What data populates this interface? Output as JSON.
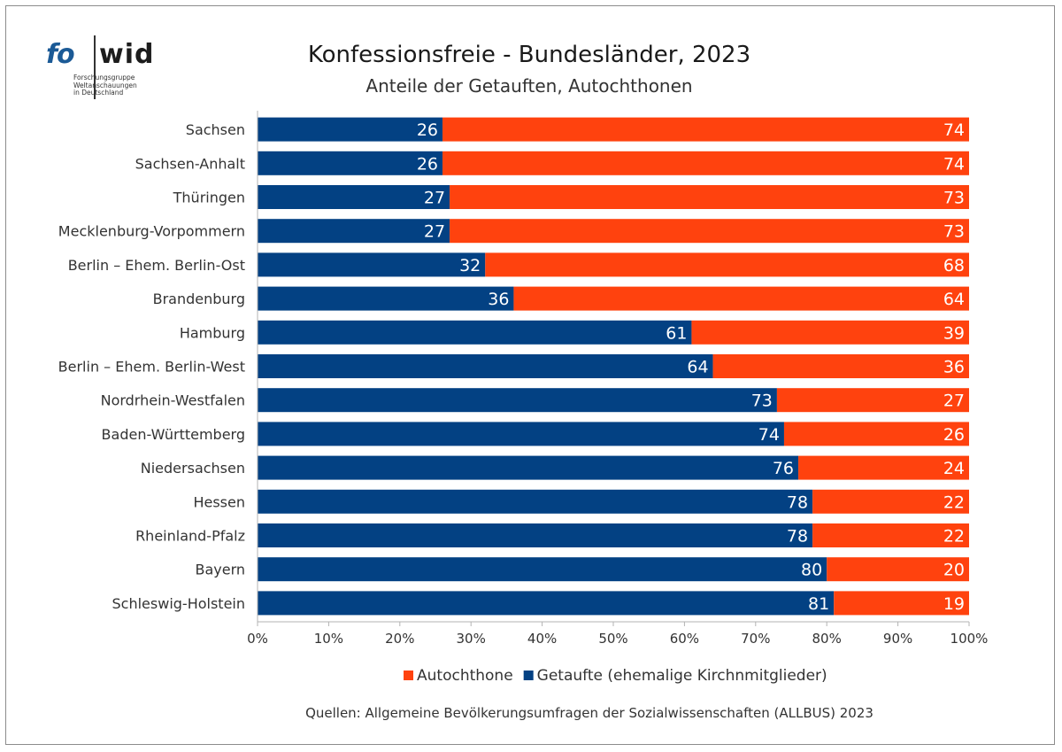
{
  "logo": {
    "part1": "fo",
    "part2": "wid",
    "sub1": "Forschungsgruppe",
    "sub2": "Weltanschauungen",
    "sub3": "in Deutschland"
  },
  "colors": {
    "getaufte": "#034183",
    "autochthone": "#ff420e"
  },
  "source": "Quellen: Allgemeine Bevölkerungsumfragen der Sozialwissenschaften (ALLBUS) 2023",
  "chart_data": {
    "type": "bar",
    "orientation": "horizontal",
    "stacked": true,
    "title": "Konfessionsfreie - Bundesländer, 2023",
    "subtitle": "Anteile der Getauften, Autochthonen",
    "categories": [
      "Sachsen",
      "Sachsen-Anhalt",
      "Thüringen",
      "Mecklenburg-Vorpommern",
      "Berlin – Ehem. Berlin-Ost",
      "Brandenburg",
      "Hamburg",
      "Berlin – Ehem. Berlin-West",
      "Nordrhein-Westfalen",
      "Baden-Württemberg",
      "Niedersachsen",
      "Hessen",
      "Rheinland-Pfalz",
      "Bayern",
      "Schleswig-Holstein"
    ],
    "series": [
      {
        "name": "Getaufte (ehemalige Kirchnmitglieder)",
        "color": "#034183",
        "values": [
          26,
          26,
          27,
          27,
          32,
          36,
          61,
          64,
          73,
          74,
          76,
          78,
          78,
          80,
          81
        ]
      },
      {
        "name": "Autochthone",
        "color": "#ff420e",
        "values": [
          74,
          74,
          73,
          73,
          68,
          64,
          39,
          36,
          27,
          26,
          24,
          22,
          22,
          20,
          19
        ]
      }
    ],
    "xlim": [
      0,
      100
    ],
    "xticks": [
      "0%",
      "10%",
      "20%",
      "30%",
      "40%",
      "50%",
      "60%",
      "70%",
      "80%",
      "90%",
      "100%"
    ],
    "legend": {
      "position": "bottom",
      "order": [
        "Autochthone",
        "Getaufte (ehemalige Kirchnmitglieder)"
      ]
    },
    "grid": false
  }
}
